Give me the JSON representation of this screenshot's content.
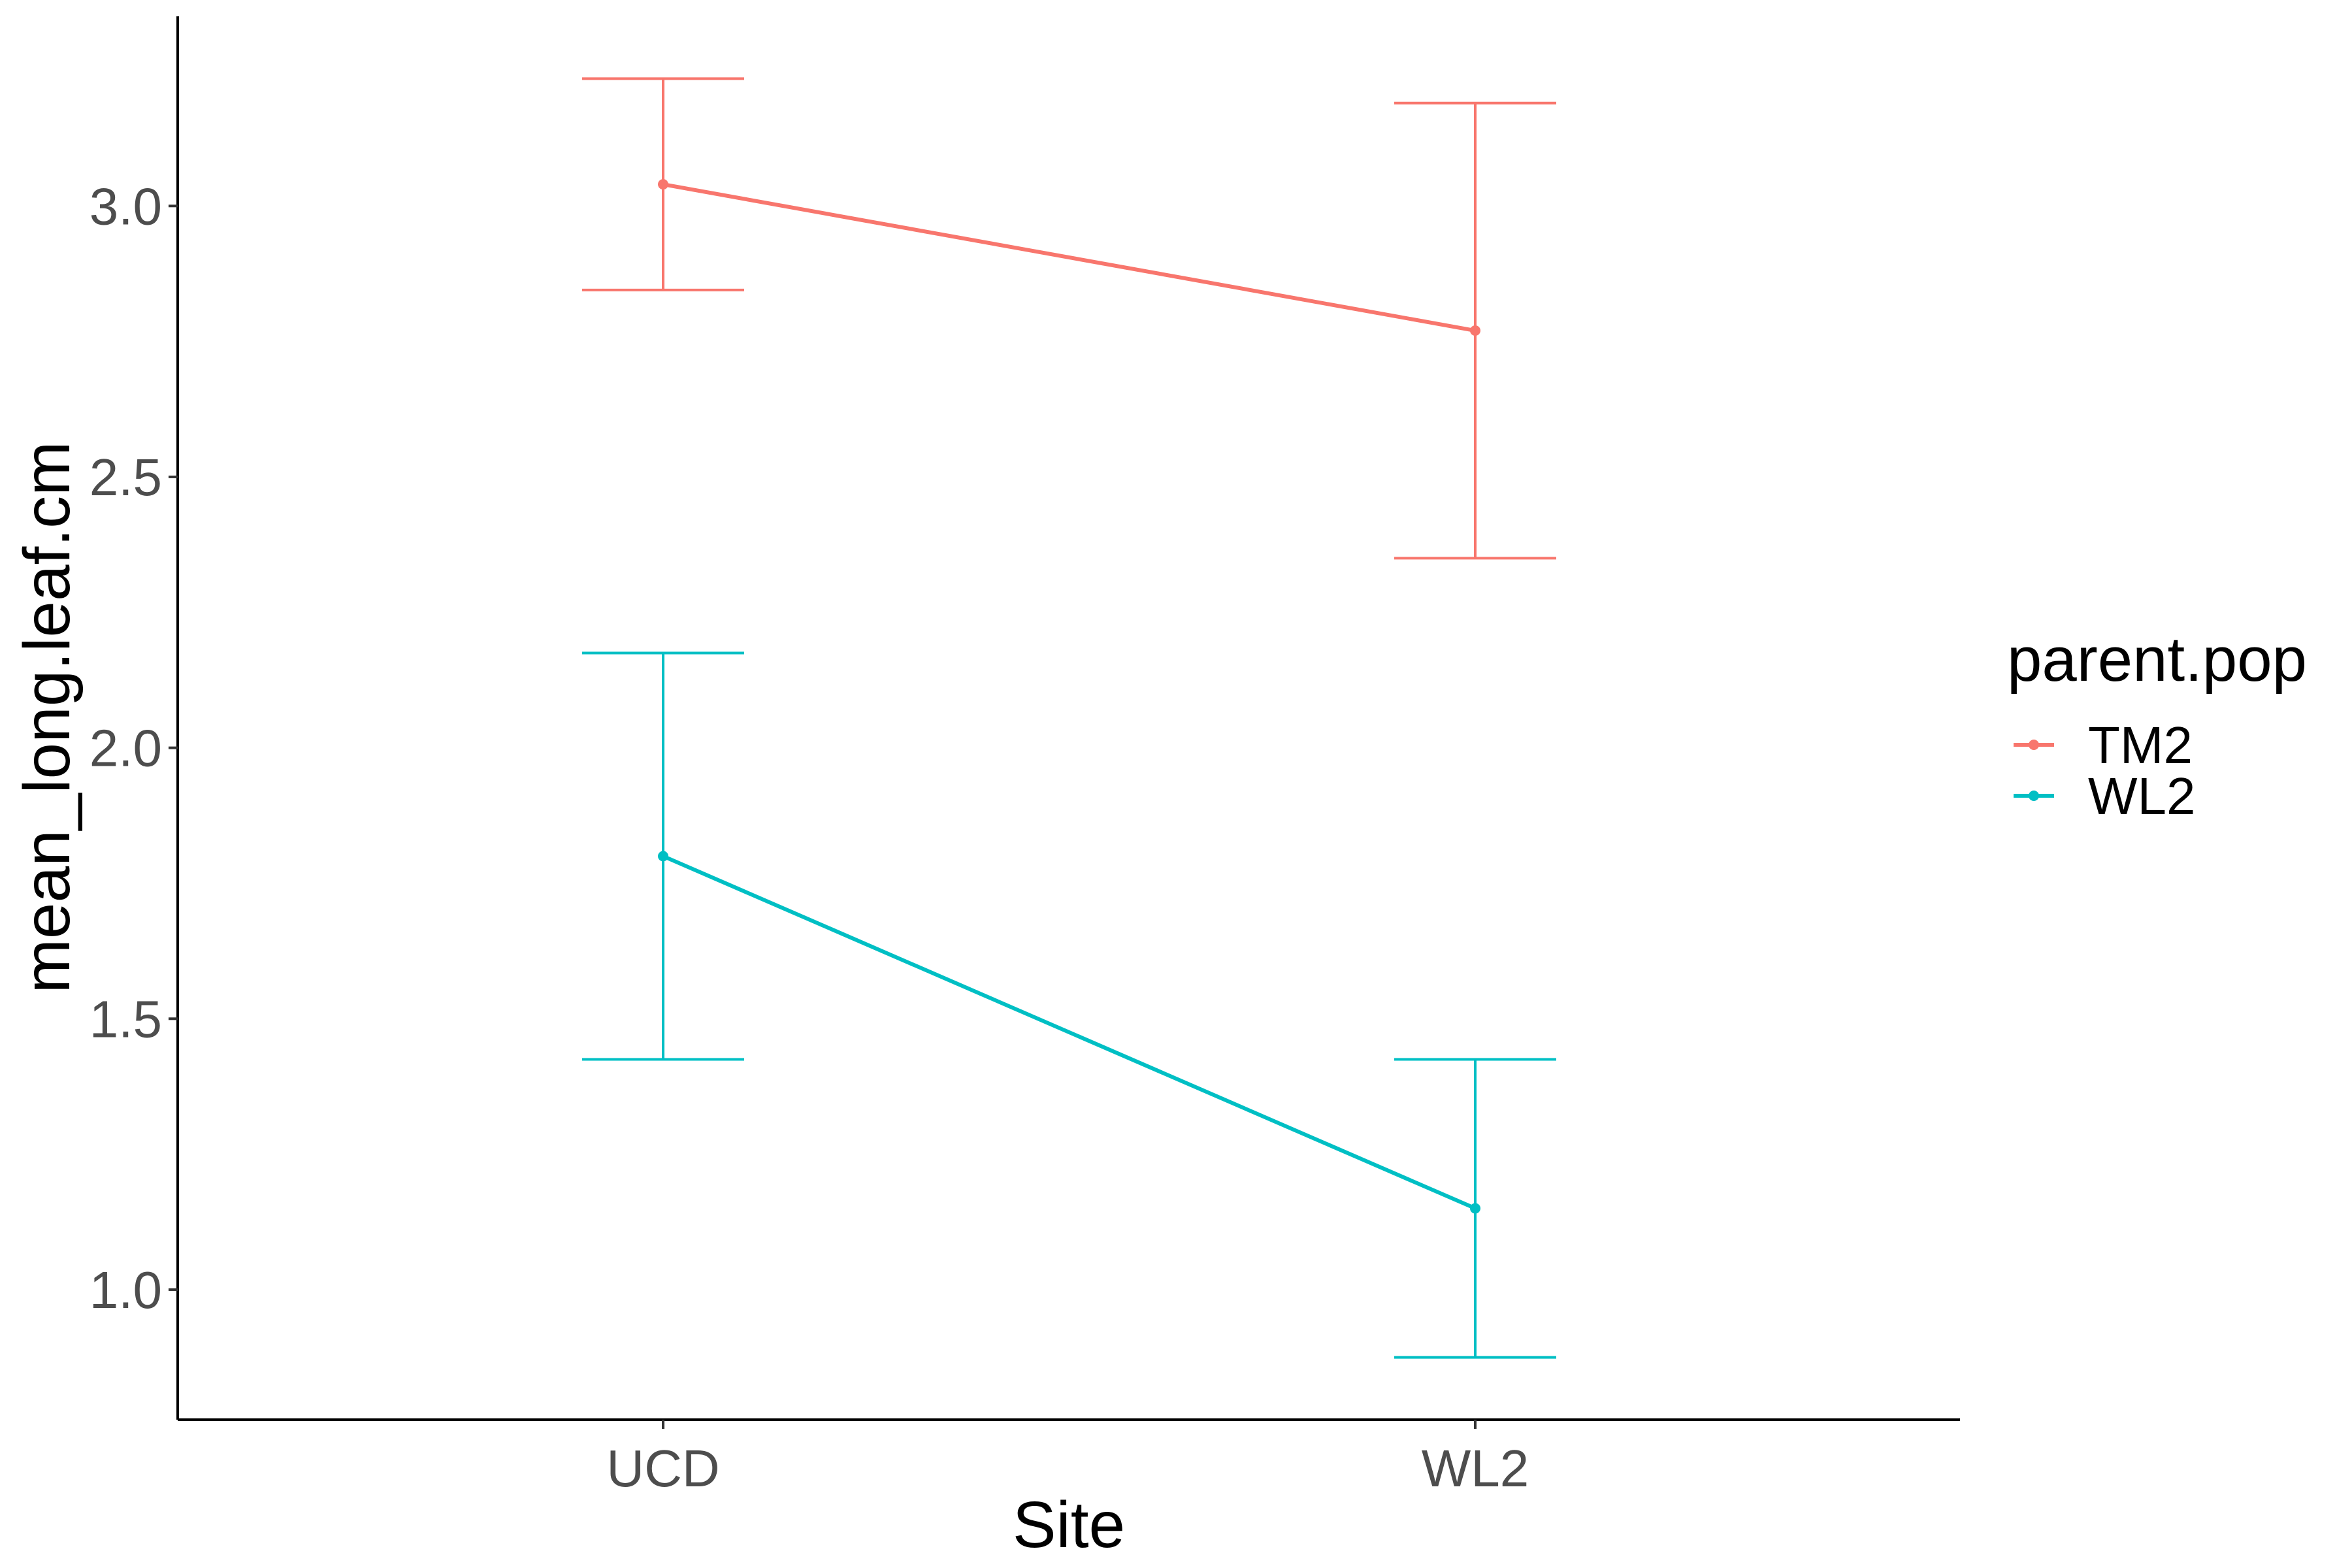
{
  "chart_data": {
    "type": "line",
    "xlabel": "Site",
    "ylabel": "mean_long.leaf.cm",
    "categories": [
      "UCD",
      "WL2"
    ],
    "ylim": [
      0.76,
      3.35
    ],
    "yticks": [
      1.0,
      1.5,
      2.0,
      2.5,
      3.0
    ],
    "ytick_labels": [
      "1.0",
      "1.5",
      "2.0",
      "2.5",
      "3.0"
    ],
    "grid": false,
    "legend": {
      "title": "parent.pop",
      "placement": "right"
    },
    "series": [
      {
        "name": "TM2",
        "color": "#F8766D",
        "values": [
          3.04,
          2.77
        ],
        "error_low": [
          2.845,
          2.35
        ],
        "error_high": [
          3.235,
          3.19
        ]
      },
      {
        "name": "WL2",
        "color": "#00BFC4",
        "values": [
          1.8,
          1.15
        ],
        "error_low": [
          1.425,
          0.875
        ],
        "error_high": [
          2.175,
          1.425
        ]
      }
    ]
  }
}
